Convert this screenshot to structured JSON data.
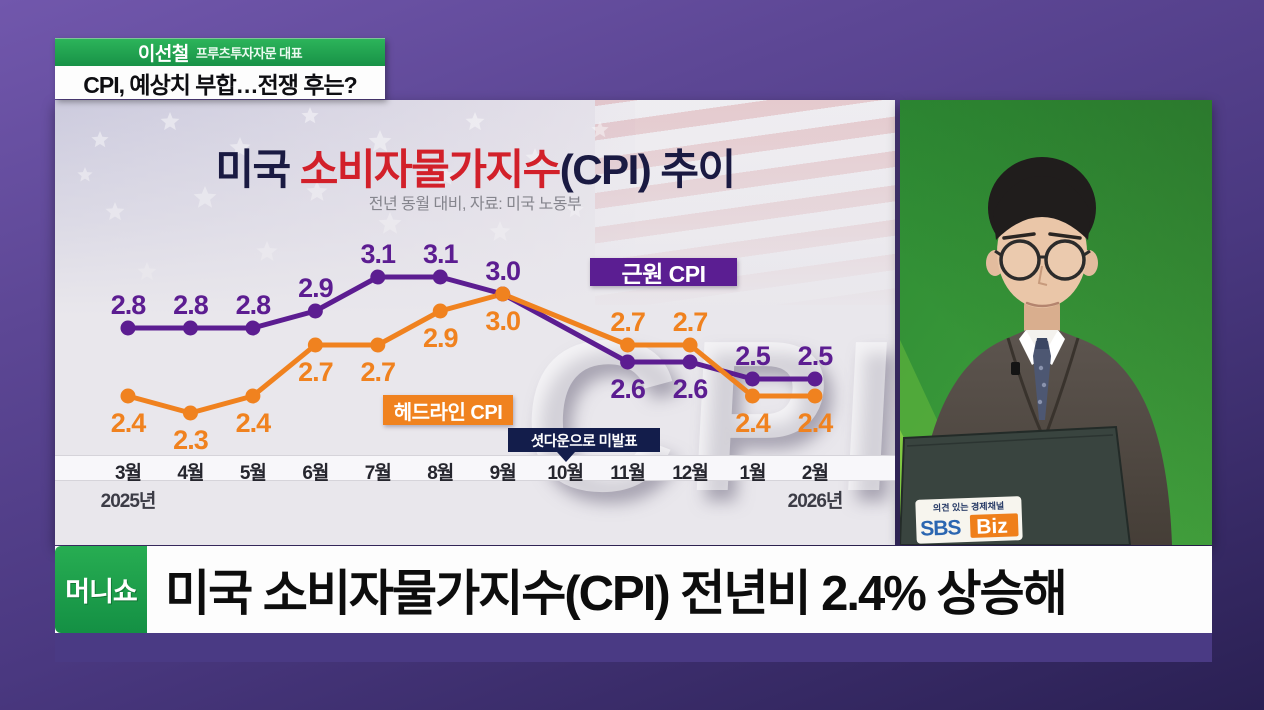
{
  "speaker_banner": {
    "name": "이선철",
    "title": "프루츠투자자문 대표",
    "topic": "CPI, 예상치 부합…전쟁 후는?"
  },
  "chart_data": {
    "type": "line",
    "title": "미국 소비자물가지수(CPI) 추이",
    "title_parts": {
      "prefix": "미국 ",
      "highlight": "소비자물가지수",
      "suffix": "(CPI) 추이"
    },
    "subtitle": "전년 동월 대비, 자료: 미국 노동부",
    "categories": [
      "3월",
      "4월",
      "5월",
      "6월",
      "7월",
      "8월",
      "9월",
      "10월",
      "11월",
      "12월",
      "1월",
      "2월"
    ],
    "series": [
      {
        "name": "근원 CPI",
        "color": "#5c1d91",
        "values": [
          2.8,
          2.8,
          2.8,
          2.9,
          3.1,
          3.1,
          3.0,
          null,
          2.6,
          2.6,
          2.5,
          2.5
        ]
      },
      {
        "name": "헤드라인 CPI",
        "color": "#f0821f",
        "values": [
          2.4,
          2.3,
          2.4,
          2.7,
          2.7,
          2.9,
          3.0,
          null,
          2.7,
          2.7,
          2.4,
          2.4
        ]
      }
    ],
    "year_labels": [
      {
        "text": "2025년",
        "under": "3월"
      },
      {
        "text": "2026년",
        "under": "2월"
      }
    ],
    "shutdown_note": "셧다운으로 미발표",
    "background_watermark": "CPI",
    "ylim": [
      2.1,
      3.3
    ],
    "grid": false,
    "value_labels": true,
    "legend_position": "inside"
  },
  "video": {
    "sticker_slogan": "의견 있는 경제채널",
    "sticker_sbs": "SBS",
    "sticker_biz": "Biz"
  },
  "headline": {
    "logo": "머니쇼",
    "text": "미국 소비자물가지수(CPI) 전년비 2.4% 상승해"
  },
  "colors": {
    "core_cpi": "#5c1d91",
    "headline_cpi": "#f0821f",
    "title_navy": "#1a1a42",
    "title_red": "#d2202a",
    "banner_green": "#1fa24c",
    "note_navy": "#131d4b",
    "background_purple": "#4a3880",
    "headline_shadow": "#4a3a84"
  }
}
